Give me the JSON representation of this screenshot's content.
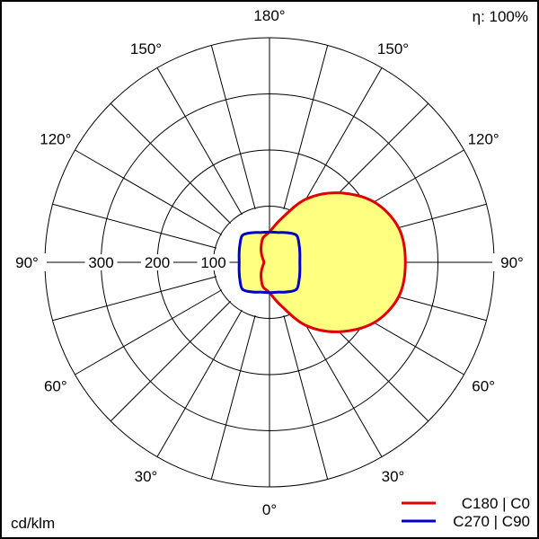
{
  "chart_data": {
    "type": "polar",
    "unit_label": "cd/klm",
    "efficiency_label": "η: 100%",
    "radial_ticks": [
      100,
      200,
      300
    ],
    "radial_max": 400,
    "angle_labels": [
      "0°",
      "30°",
      "60°",
      "90°",
      "120°",
      "150°",
      "180°"
    ],
    "gamma": [
      0,
      15,
      30,
      45,
      60,
      75,
      90,
      105,
      120,
      135,
      150,
      165,
      180
    ],
    "series": [
      {
        "name": "C180 | C0",
        "color": "#e00000",
        "C0": [
          54,
          80,
          130,
          175,
          215,
          238,
          242,
          238,
          215,
          175,
          130,
          80,
          54
        ],
        "C180": [
          54,
          45,
          30,
          20,
          14,
          11,
          10,
          11,
          14,
          20,
          30,
          45,
          54
        ]
      },
      {
        "name": "C270 | C90",
        "color": "#0000c8",
        "C90": [
          54,
          55,
          61,
          68,
          61,
          56,
          54,
          56,
          61,
          68,
          61,
          55,
          54
        ],
        "C270": [
          54,
          55,
          61,
          68,
          61,
          56,
          54,
          56,
          61,
          68,
          61,
          55,
          54
        ]
      }
    ],
    "fill_color": "#ffff80",
    "grid": true,
    "legend": "bottom-right"
  }
}
